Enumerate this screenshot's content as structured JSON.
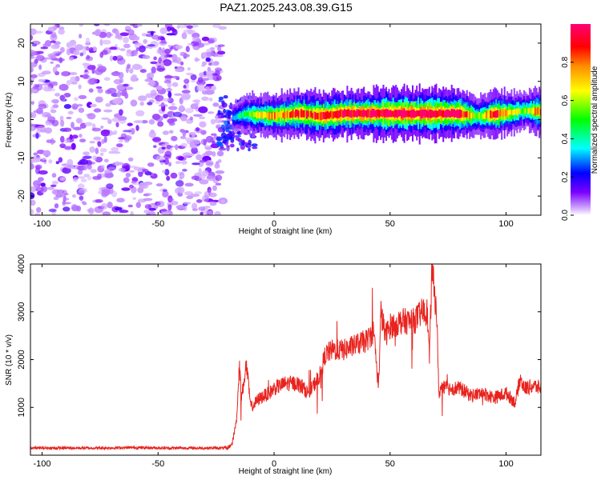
{
  "chart_data": [
    {
      "type": "heatmap",
      "title": "PAZ1.2025.243.08.39.G15",
      "xlabel": "Height of straight line (km)",
      "ylabel": "Frequency (Hz)",
      "xlim": [
        -105,
        115
      ],
      "ylim": [
        -25,
        25
      ],
      "xticks": [
        -100,
        -50,
        0,
        50,
        100
      ],
      "yticks": [
        -20,
        -10,
        0,
        10,
        20
      ],
      "colorbar": {
        "label": "Normalized spectral amplitude",
        "range": [
          0,
          1
        ],
        "ticks": [
          "0.0",
          "0.2",
          "0.4",
          "0.6",
          "0.8"
        ],
        "stops": [
          "#ffffff",
          "#7a00ff",
          "#0000ff",
          "#00ffff",
          "#00ff00",
          "#ffff00",
          "#ff8c00",
          "#ff0000",
          "#ff0077"
        ]
      },
      "noise_region_km": [
        -105,
        -22
      ],
      "signal_track": [
        {
          "x": -18,
          "freq": 0.5,
          "amp": 0.25
        },
        {
          "x": -12,
          "freq": 1.5,
          "amp": 0.45
        },
        {
          "x": -8,
          "freq": 1.2,
          "amp": 0.6
        },
        {
          "x": 0,
          "freq": 1.0,
          "amp": 0.7
        },
        {
          "x": 10,
          "freq": 1.6,
          "amp": 0.8
        },
        {
          "x": 20,
          "freq": 1.0,
          "amp": 0.85
        },
        {
          "x": 30,
          "freq": 1.6,
          "amp": 0.9
        },
        {
          "x": 40,
          "freq": 1.6,
          "amp": 0.9
        },
        {
          "x": 50,
          "freq": 1.6,
          "amp": 0.95
        },
        {
          "x": 60,
          "freq": 1.6,
          "amp": 0.95
        },
        {
          "x": 70,
          "freq": 1.6,
          "amp": 0.95
        },
        {
          "x": 80,
          "freq": 1.6,
          "amp": 0.9
        },
        {
          "x": 88,
          "freq": 0.8,
          "amp": 0.5
        },
        {
          "x": 95,
          "freq": 1.5,
          "amp": 0.85
        },
        {
          "x": 103,
          "freq": 1.8,
          "amp": 0.6
        },
        {
          "x": 108,
          "freq": 2.5,
          "amp": 0.5
        },
        {
          "x": 115,
          "freq": 2.0,
          "amp": 0.8
        }
      ]
    },
    {
      "type": "line",
      "xlabel": "Height of straight line (km)",
      "ylabel": "SNR (10 * v/v)",
      "xlim": [
        -105,
        115
      ],
      "ylim": [
        0,
        4000
      ],
      "xticks": [
        -100,
        -50,
        0,
        50,
        100
      ],
      "yticks": [
        1000,
        2000,
        3000,
        4000
      ],
      "series_color": "#e8231e",
      "series": [
        {
          "x": [
            -105,
            -90,
            -75,
            -60,
            -45,
            -30,
            -20,
            -18,
            -16,
            -15,
            -14,
            -12,
            -10,
            -6,
            -2,
            0,
            5,
            10,
            15,
            20,
            22,
            25,
            30,
            35,
            40,
            43,
            45,
            46,
            48,
            50,
            55,
            60,
            64,
            66,
            67,
            68,
            69,
            70,
            71,
            72,
            75,
            80,
            85,
            90,
            95,
            100,
            104,
            106,
            108,
            112,
            115
          ],
          "y": [
            150,
            150,
            150,
            160,
            150,
            150,
            150,
            250,
            800,
            1900,
            1200,
            1900,
            1000,
            1200,
            1300,
            1400,
            1500,
            1500,
            1300,
            1700,
            2100,
            2200,
            2200,
            2300,
            2400,
            2600,
            1400,
            3000,
            2500,
            2700,
            2800,
            2800,
            3000,
            3000,
            2000,
            4000,
            3400,
            3100,
            1300,
            1400,
            1400,
            1400,
            1250,
            1300,
            1200,
            1300,
            1100,
            1600,
            1400,
            1450,
            1400
          ]
        }
      ]
    }
  ]
}
